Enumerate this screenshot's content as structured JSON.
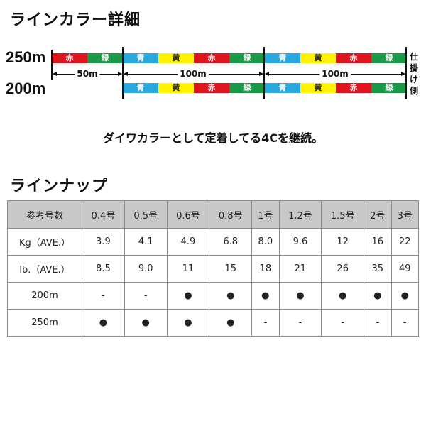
{
  "color_detail": {
    "title": "ラインカラー詳細",
    "len250": "250m",
    "len200": "200m",
    "bar250": [
      {
        "label": "赤",
        "color": "#e0141e"
      },
      {
        "label": "緑",
        "color": "#1a9a48"
      },
      {
        "label": "青",
        "color": "#29a8e0"
      },
      {
        "label": "黄",
        "color": "#fff200"
      },
      {
        "label": "赤",
        "color": "#e0141e"
      },
      {
        "label": "緑",
        "color": "#1a9a48"
      },
      {
        "label": "青",
        "color": "#29a8e0"
      },
      {
        "label": "黄",
        "color": "#fff200"
      },
      {
        "label": "赤",
        "color": "#e0141e"
      },
      {
        "label": "緑",
        "color": "#1a9a48"
      }
    ],
    "bar200": [
      {
        "label": "青",
        "color": "#29a8e0"
      },
      {
        "label": "黄",
        "color": "#fff200"
      },
      {
        "label": "赤",
        "color": "#e0141e"
      },
      {
        "label": "緑",
        "color": "#1a9a48"
      },
      {
        "label": "青",
        "color": "#29a8e0"
      },
      {
        "label": "黄",
        "color": "#fff200"
      },
      {
        "label": "赤",
        "color": "#e0141e"
      },
      {
        "label": "緑",
        "color": "#1a9a48"
      }
    ],
    "dim1": "50m",
    "dim2": "100m",
    "dim3": "100m",
    "side_label": "仕掛け側"
  },
  "sentence": "ダイワカラーとして定着してる4Cを継続。",
  "lineup": {
    "title": "ラインナップ",
    "header": [
      "参考号数",
      "0.4号",
      "0.5号",
      "0.6号",
      "0.8号",
      "1号",
      "1.2号",
      "1.5号",
      "2号",
      "3号"
    ],
    "rows": [
      [
        "Kg（AVE.）",
        "3.9",
        "4.1",
        "4.9",
        "6.8",
        "8.0",
        "9.6",
        "12",
        "16",
        "22"
      ],
      [
        "lb.（AVE.）",
        "8.5",
        "9.0",
        "11",
        "15",
        "18",
        "21",
        "26",
        "35",
        "49"
      ],
      [
        "200m",
        "-",
        "-",
        "●",
        "●",
        "●",
        "●",
        "●",
        "●",
        "●"
      ],
      [
        "250m",
        "●",
        "●",
        "●",
        "●",
        "-",
        "-",
        "-",
        "-",
        "-"
      ]
    ]
  }
}
